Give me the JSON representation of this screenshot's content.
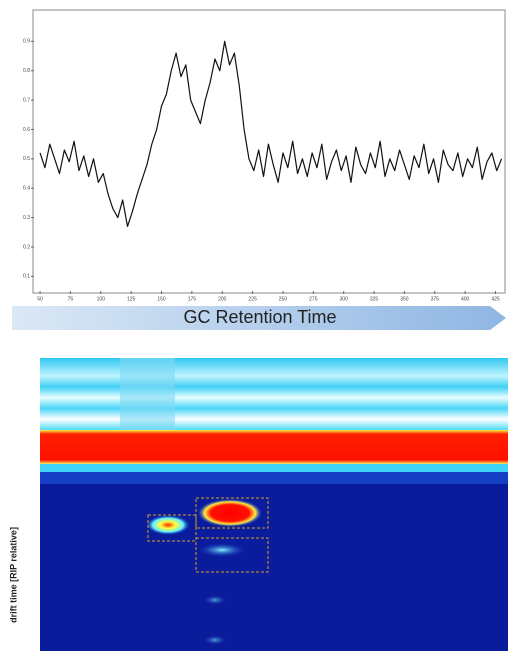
{
  "chart_data": {
    "type": "line",
    "x": [
      50,
      54,
      58,
      62,
      66,
      70,
      74,
      78,
      82,
      86,
      90,
      94,
      98,
      102,
      106,
      110,
      114,
      118,
      122,
      126,
      130,
      134,
      138,
      142,
      146,
      150,
      154,
      158,
      162,
      166,
      170,
      174,
      178,
      182,
      186,
      190,
      194,
      198,
      202,
      206,
      210,
      214,
      218,
      222,
      226,
      230,
      234,
      238,
      242,
      246,
      250,
      254,
      258,
      262,
      266,
      270,
      274,
      278,
      282,
      286,
      290,
      294,
      298,
      302,
      306,
      310,
      314,
      318,
      322,
      326,
      330,
      334,
      338,
      342,
      346,
      350,
      354,
      358,
      362,
      366,
      370,
      374,
      378,
      382,
      386,
      390,
      394,
      398,
      402,
      406,
      410,
      414,
      418,
      422,
      426,
      430
    ],
    "series": [
      {
        "color": "#111111",
        "values": [
          0.52,
          0.47,
          0.55,
          0.5,
          0.45,
          0.53,
          0.49,
          0.56,
          0.46,
          0.51,
          0.44,
          0.5,
          0.42,
          0.45,
          0.38,
          0.33,
          0.3,
          0.36,
          0.27,
          0.32,
          0.38,
          0.43,
          0.48,
          0.55,
          0.6,
          0.68,
          0.72,
          0.8,
          0.86,
          0.78,
          0.82,
          0.7,
          0.66,
          0.62,
          0.7,
          0.76,
          0.84,
          0.8,
          0.9,
          0.82,
          0.86,
          0.75,
          0.6,
          0.5,
          0.46,
          0.53,
          0.44,
          0.55,
          0.48,
          0.42,
          0.52,
          0.47,
          0.56,
          0.45,
          0.5,
          0.44,
          0.52,
          0.47,
          0.55,
          0.43,
          0.49,
          0.53,
          0.46,
          0.51,
          0.42,
          0.54,
          0.48,
          0.45,
          0.52,
          0.47,
          0.56,
          0.44,
          0.5,
          0.46,
          0.53,
          0.48,
          0.43,
          0.51,
          0.47,
          0.55,
          0.45,
          0.5,
          0.42,
          0.53,
          0.48,
          0.46,
          0.52,
          0.44,
          0.5,
          0.47,
          0.54,
          0.43,
          0.49,
          0.52,
          0.46,
          0.5
        ]
      }
    ],
    "xlim": [
      45,
      432
    ],
    "xticks": [
      50,
      75,
      100,
      125,
      150,
      175,
      200,
      225,
      250,
      275,
      300,
      325,
      350,
      375,
      400,
      425
    ],
    "ylim": [
      0.05,
      1.0
    ],
    "yticks": [
      0.1,
      0.2,
      0.3,
      0.4,
      0.5,
      0.6,
      0.7,
      0.8,
      0.9
    ],
    "x_label": "GC Retention Time",
    "heatmap_y_label": "drift time [RIP relative]"
  }
}
